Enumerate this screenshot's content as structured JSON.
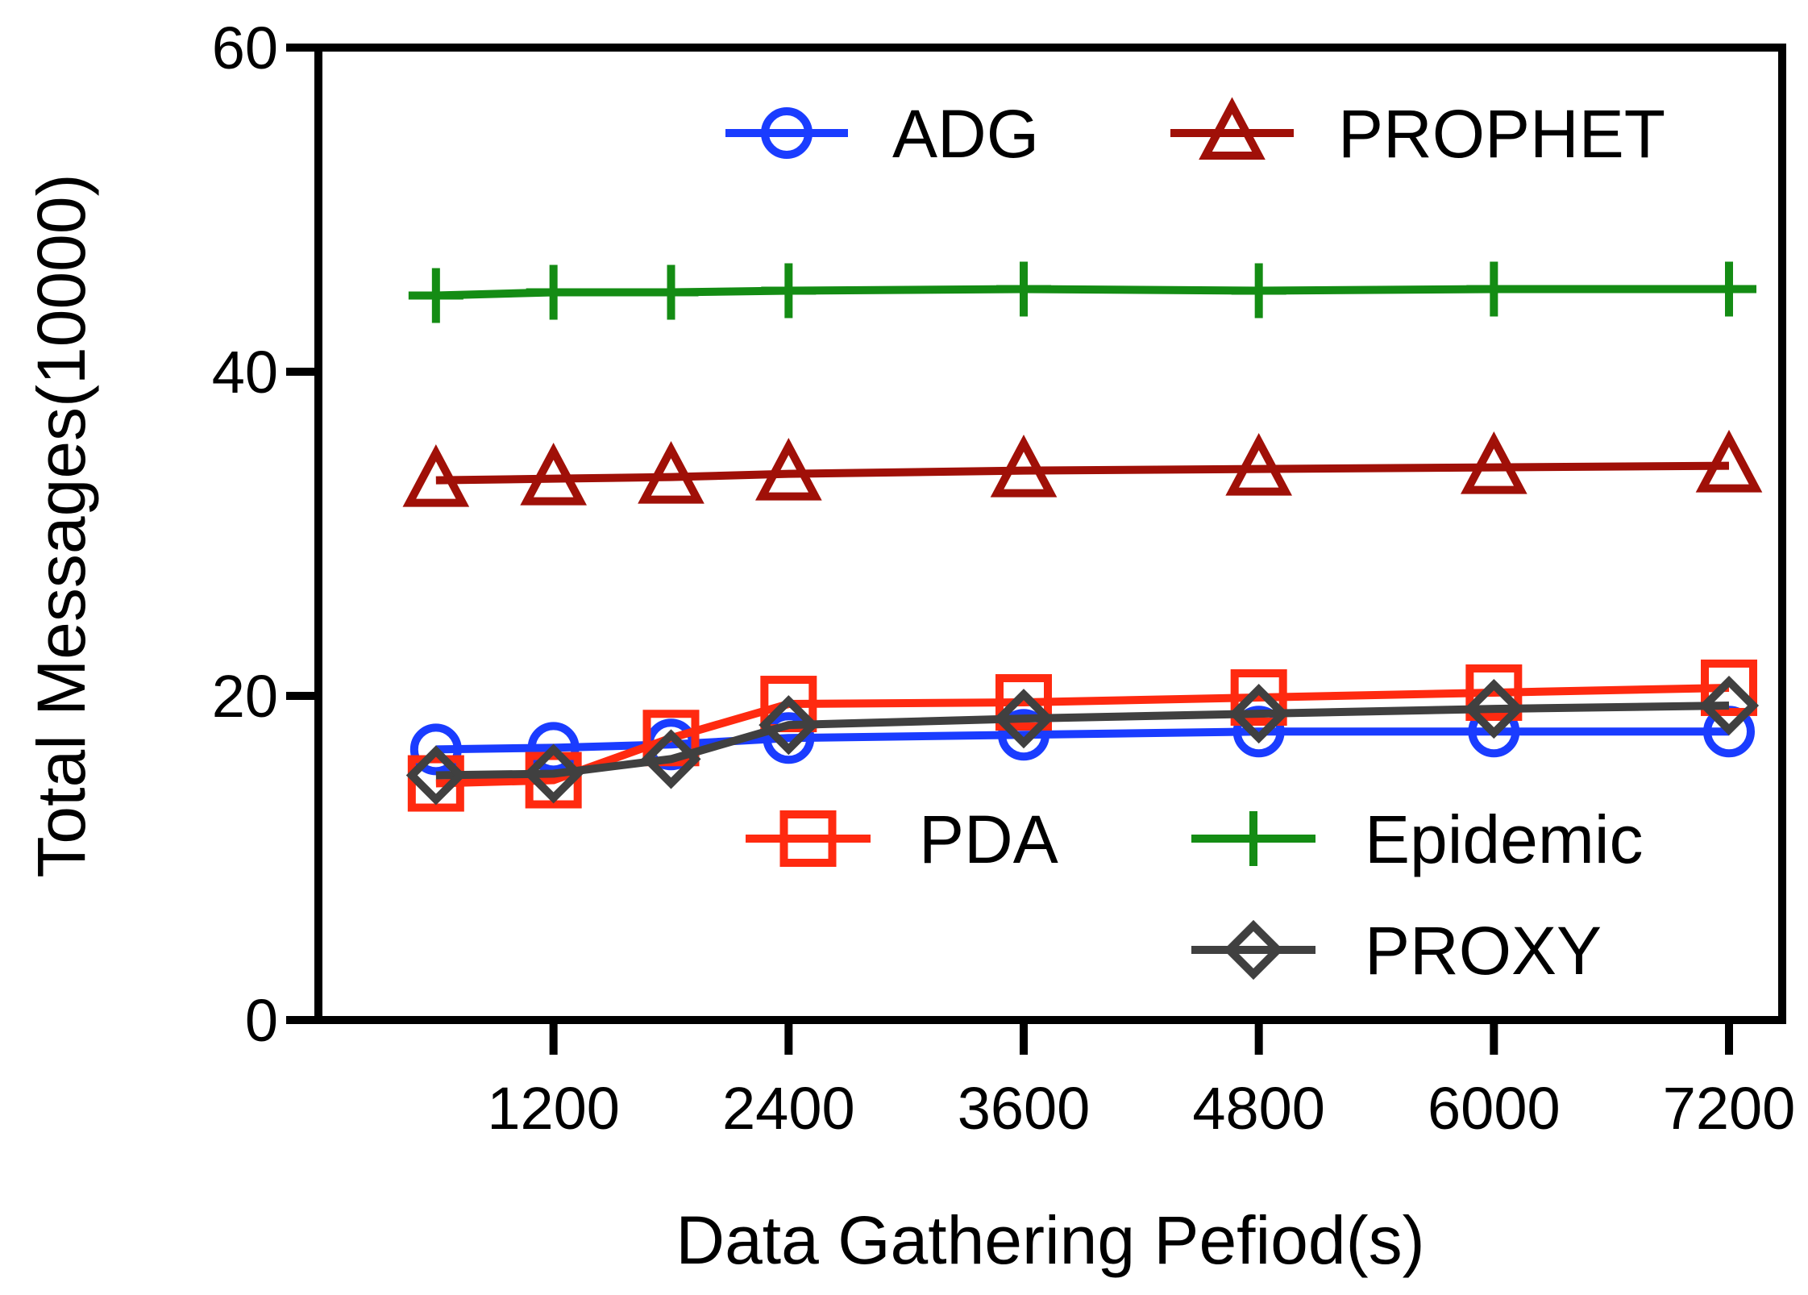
{
  "chart_data": {
    "type": "line",
    "title": "",
    "xlabel": "Data Gathering Pefiod(s)",
    "ylabel": "Total Messages(10000)",
    "x": [
      600,
      1200,
      1800,
      2400,
      3600,
      4800,
      6000,
      7200
    ],
    "xlim": [
      0,
      7200
    ],
    "ylim": [
      0,
      60
    ],
    "xticks": [
      1200,
      2400,
      3600,
      4800,
      6000,
      7200
    ],
    "xtick_labels": [
      "1200",
      "2400",
      "3600",
      "4800",
      "6000",
      "7200"
    ],
    "yticks": [
      0,
      20,
      40,
      60
    ],
    "ytick_labels": [
      "0",
      "20",
      "40",
      "60"
    ],
    "grid": false,
    "series": [
      {
        "name": "ADG",
        "color": "#1a3cff",
        "marker": "circle",
        "values": [
          16.7,
          16.8,
          17.0,
          17.4,
          17.6,
          17.8,
          17.8,
          17.8
        ]
      },
      {
        "name": "PROPHET",
        "color": "#a01008",
        "marker": "triangle",
        "values": [
          33.3,
          33.4,
          33.5,
          33.7,
          33.9,
          34.0,
          34.1,
          34.2
        ]
      },
      {
        "name": "PDA",
        "color": "#ff2a10",
        "marker": "square",
        "values": [
          14.6,
          14.8,
          17.4,
          19.5,
          19.6,
          19.9,
          20.2,
          20.5
        ]
      },
      {
        "name": "Epidemic",
        "color": "#148c14",
        "marker": "plus",
        "values": [
          44.7,
          44.9,
          44.9,
          45.0,
          45.1,
          45.0,
          45.1,
          45.1
        ]
      },
      {
        "name": "PROXY",
        "color": "#404040",
        "marker": "diamond",
        "values": [
          15.1,
          15.2,
          16.1,
          18.2,
          18.6,
          18.9,
          19.2,
          19.4
        ]
      }
    ],
    "legend": {
      "top_row": [
        "ADG",
        "PROPHET"
      ],
      "bottom_rows": [
        [
          "PDA",
          "Epidemic"
        ],
        [
          "PROXY"
        ]
      ],
      "placement": "inside plot, top and lower-right"
    }
  }
}
